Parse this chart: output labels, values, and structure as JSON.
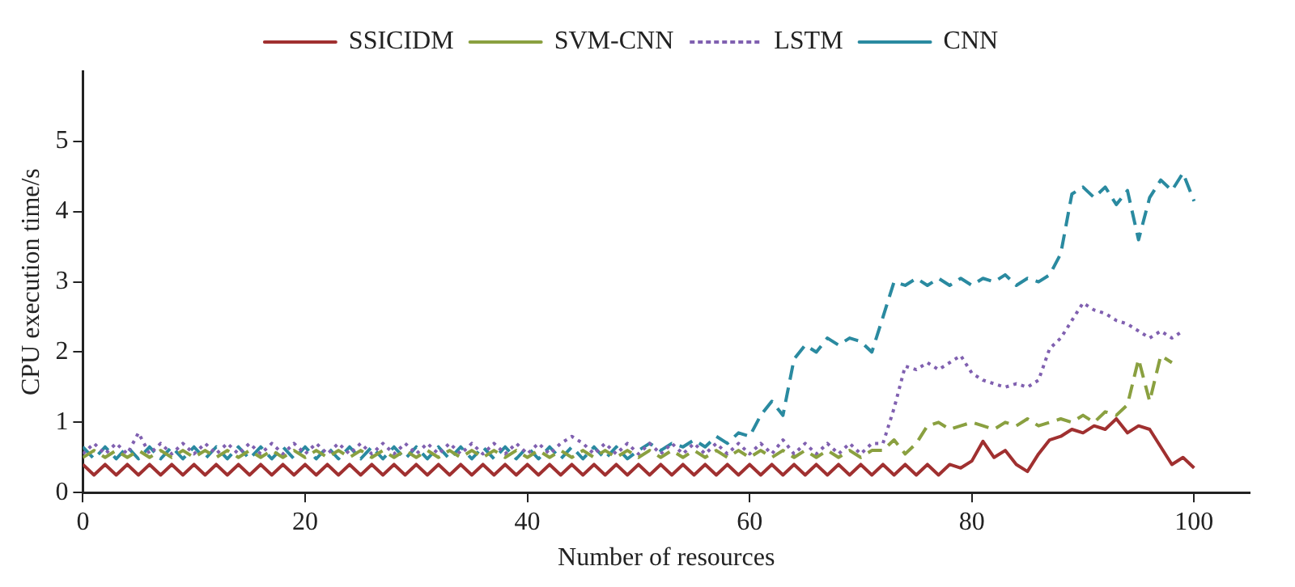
{
  "chart_data": {
    "type": "line",
    "xlabel": "Number of resources",
    "ylabel": "CPU execution time/s",
    "x": [
      0,
      1,
      2,
      3,
      4,
      5,
      6,
      7,
      8,
      9,
      10,
      11,
      12,
      13,
      14,
      15,
      16,
      17,
      18,
      19,
      20,
      21,
      22,
      23,
      24,
      25,
      26,
      27,
      28,
      29,
      30,
      31,
      32,
      33,
      34,
      35,
      36,
      37,
      38,
      39,
      40,
      41,
      42,
      43,
      44,
      45,
      46,
      47,
      48,
      49,
      50,
      51,
      52,
      53,
      54,
      55,
      56,
      57,
      58,
      59,
      60,
      61,
      62,
      63,
      64,
      65,
      66,
      67,
      68,
      69,
      70,
      71,
      72,
      73,
      74,
      75,
      76,
      77,
      78,
      79,
      80,
      81,
      82,
      83,
      84,
      85,
      86,
      87,
      88,
      89,
      90,
      91,
      92,
      93,
      94,
      95,
      96,
      97,
      98,
      99,
      100
    ],
    "series": [
      {
        "name": "SSICIDM",
        "color": "#a03030",
        "line_style": "solid",
        "values": [
          0.4,
          0.25,
          0.4,
          0.25,
          0.4,
          0.25,
          0.4,
          0.25,
          0.4,
          0.25,
          0.4,
          0.25,
          0.4,
          0.25,
          0.4,
          0.25,
          0.4,
          0.25,
          0.4,
          0.25,
          0.4,
          0.25,
          0.4,
          0.25,
          0.4,
          0.25,
          0.4,
          0.25,
          0.4,
          0.25,
          0.4,
          0.25,
          0.4,
          0.25,
          0.4,
          0.25,
          0.4,
          0.25,
          0.4,
          0.25,
          0.4,
          0.25,
          0.4,
          0.25,
          0.4,
          0.25,
          0.4,
          0.25,
          0.4,
          0.25,
          0.4,
          0.25,
          0.4,
          0.25,
          0.4,
          0.25,
          0.4,
          0.25,
          0.4,
          0.25,
          0.4,
          0.25,
          0.4,
          0.25,
          0.4,
          0.25,
          0.4,
          0.25,
          0.4,
          0.25,
          0.4,
          0.25,
          0.4,
          0.25,
          0.4,
          0.25,
          0.4,
          0.25,
          0.4,
          0.35,
          0.45,
          0.73,
          0.5,
          0.6,
          0.4,
          0.3,
          0.55,
          0.75,
          0.8,
          0.9,
          0.85,
          0.95,
          0.9,
          1.05,
          0.85,
          0.95,
          0.9,
          0.65,
          0.4,
          0.5,
          0.35
        ]
      },
      {
        "name": "SVM-CNN",
        "color": "#8aa040",
        "line_style": "dashed",
        "values": [
          0.5,
          0.6,
          0.5,
          0.6,
          0.5,
          0.6,
          0.5,
          0.6,
          0.5,
          0.6,
          0.5,
          0.6,
          0.5,
          0.6,
          0.5,
          0.6,
          0.5,
          0.6,
          0.5,
          0.6,
          0.5,
          0.6,
          0.5,
          0.6,
          0.5,
          0.6,
          0.5,
          0.6,
          0.5,
          0.6,
          0.5,
          0.6,
          0.5,
          0.6,
          0.5,
          0.6,
          0.5,
          0.6,
          0.5,
          0.6,
          0.5,
          0.6,
          0.5,
          0.6,
          0.5,
          0.6,
          0.5,
          0.6,
          0.5,
          0.6,
          0.5,
          0.6,
          0.5,
          0.6,
          0.5,
          0.6,
          0.5,
          0.6,
          0.5,
          0.6,
          0.5,
          0.6,
          0.5,
          0.6,
          0.5,
          0.6,
          0.5,
          0.6,
          0.5,
          0.6,
          0.5,
          0.6,
          0.6,
          0.75,
          0.55,
          0.7,
          0.95,
          1.0,
          0.9,
          0.95,
          1.0,
          0.95,
          0.9,
          1.0,
          0.95,
          1.05,
          0.95,
          1.0,
          1.05,
          1.0,
          1.1,
          1.0,
          1.15,
          1.1,
          1.25,
          1.9,
          1.3,
          1.95,
          1.85,
          null,
          null
        ]
      },
      {
        "name": "LSTM",
        "color": "#8060b0",
        "line_style": "dotted",
        "values": [
          0.55,
          0.7,
          0.55,
          0.7,
          0.55,
          0.85,
          0.55,
          0.7,
          0.55,
          0.7,
          0.55,
          0.7,
          0.55,
          0.7,
          0.55,
          0.7,
          0.55,
          0.7,
          0.55,
          0.7,
          0.55,
          0.7,
          0.55,
          0.7,
          0.55,
          0.7,
          0.55,
          0.7,
          0.55,
          0.7,
          0.55,
          0.7,
          0.55,
          0.7,
          0.55,
          0.7,
          0.55,
          0.7,
          0.55,
          0.7,
          0.55,
          0.7,
          0.55,
          0.7,
          0.8,
          0.7,
          0.55,
          0.7,
          0.55,
          0.7,
          0.55,
          0.7,
          0.55,
          0.7,
          0.55,
          0.7,
          0.55,
          0.7,
          0.55,
          0.7,
          0.55,
          0.7,
          0.55,
          0.75,
          0.55,
          0.7,
          0.55,
          0.7,
          0.55,
          0.7,
          0.55,
          0.7,
          0.7,
          1.2,
          1.8,
          1.75,
          1.85,
          1.75,
          1.85,
          1.95,
          1.7,
          1.6,
          1.55,
          1.5,
          1.55,
          1.5,
          1.6,
          2.05,
          2.2,
          2.45,
          2.7,
          2.6,
          2.55,
          2.45,
          2.4,
          2.3,
          2.2,
          2.3,
          2.2,
          2.3,
          null
        ]
      },
      {
        "name": "CNN",
        "color": "#2a8aa0",
        "line_style": "dashed",
        "values": [
          0.65,
          0.48,
          0.65,
          0.48,
          0.65,
          0.48,
          0.65,
          0.48,
          0.65,
          0.48,
          0.65,
          0.48,
          0.65,
          0.48,
          0.65,
          0.48,
          0.65,
          0.48,
          0.65,
          0.48,
          0.65,
          0.48,
          0.65,
          0.48,
          0.65,
          0.48,
          0.65,
          0.48,
          0.65,
          0.48,
          0.65,
          0.48,
          0.65,
          0.48,
          0.65,
          0.48,
          0.65,
          0.48,
          0.65,
          0.48,
          0.65,
          0.48,
          0.65,
          0.48,
          0.65,
          0.48,
          0.65,
          0.48,
          0.65,
          0.48,
          0.6,
          0.7,
          0.6,
          0.7,
          0.65,
          0.75,
          0.65,
          0.8,
          0.7,
          0.85,
          0.8,
          1.1,
          1.3,
          1.1,
          1.9,
          2.1,
          2.0,
          2.2,
          2.1,
          2.2,
          2.15,
          2.0,
          2.5,
          3.0,
          2.95,
          3.05,
          2.95,
          3.05,
          2.95,
          3.05,
          2.95,
          3.05,
          3.0,
          3.1,
          2.95,
          3.05,
          3.0,
          3.1,
          3.4,
          4.25,
          4.35,
          4.2,
          4.35,
          4.1,
          4.3,
          3.6,
          4.2,
          4.45,
          4.3,
          4.55,
          4.15
        ]
      }
    ],
    "xlim": [
      0,
      105
    ],
    "xticks": [
      0,
      20,
      40,
      60,
      80,
      100
    ],
    "ylim": [
      0,
      6
    ],
    "yticks": [
      0,
      1,
      2,
      3,
      4,
      5
    ],
    "grid": false,
    "legend": "top",
    "marker": "none"
  }
}
